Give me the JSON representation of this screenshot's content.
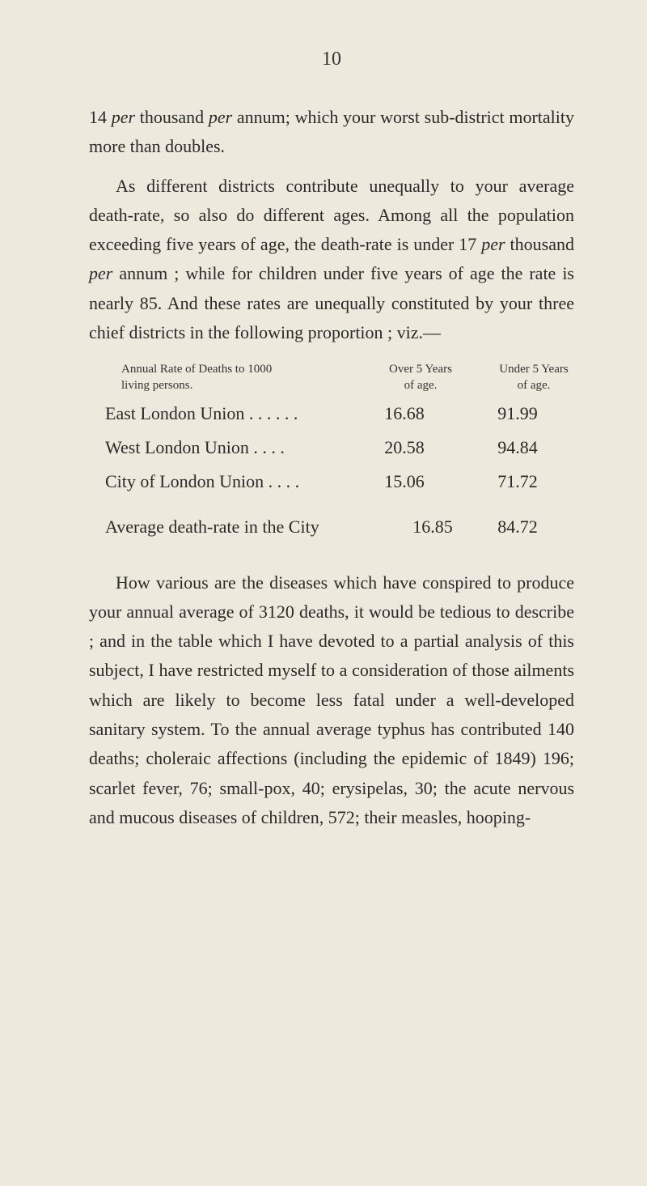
{
  "page_number": "10",
  "para1_a": "14 ",
  "para1_b": "per",
  "para1_c": " thousand ",
  "para1_d": "per",
  "para1_e": " annum; which your worst sub-district mortality more than doubles.",
  "para2_a": "As different districts contribute unequally to your average death-rate, so also do different ages. Among all the population exceeding five years of age, the death-rate is under 17 ",
  "para2_b": "per",
  "para2_c": " thousand ",
  "para2_d": "per",
  "para2_e": " annum ; while for children under five years of age the rate is nearly 85. And these rates are unequally constituted by your three chief districts in the following proportion ; viz.—",
  "table": {
    "header_left_l1": "Annual Rate of Deaths to 1000",
    "header_left_l2": "living persons.",
    "header_col1_l1": "Over 5 Years",
    "header_col1_l2": "of age.",
    "header_col2_l1": "Under 5 Years",
    "header_col2_l2": "of age.",
    "rows": [
      {
        "label": "East London Union . . . . . .",
        "v1": "16.68",
        "v2": "91.99"
      },
      {
        "label": "West London Union  . . . .",
        "v1": "20.58",
        "v2": "94.84"
      },
      {
        "label": "City of London Union  . . . .",
        "v1": "15.06",
        "v2": "71.72"
      }
    ],
    "avg_label": "Average death-rate in the City",
    "avg_v1": "16.85",
    "avg_v2": "84.72"
  },
  "para3": "How various are the diseases which have con­spired to produce your annual average of 3120 deaths, it would be tedious to describe ; and in the table which I have devoted to a partial analysis of this subject, I have restricted myself to a consider­ation of those ailments which are likely to become less fatal under a well-developed sanitary system. To the annual average typhus has contributed 140 deaths; choleraic affections (including the epidemic of 1849) 196; scarlet fever, 76; small-pox, 40; erysipelas, 30; the acute nervous and mucous di­seases of children, 572; their measles, hooping-"
}
